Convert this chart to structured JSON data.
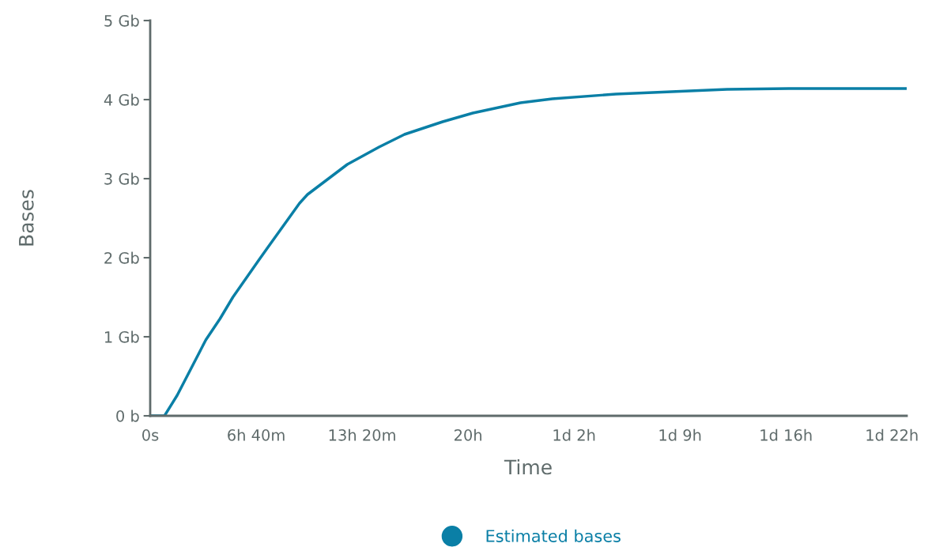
{
  "chart_data": {
    "type": "line",
    "xlabel": "Time",
    "ylabel": "Bases",
    "xlim": [
      0,
      47.6
    ],
    "ylim": [
      0,
      5
    ],
    "xticks": [
      {
        "value": 0,
        "label": "0s"
      },
      {
        "value": 6.667,
        "label": "6h 40m"
      },
      {
        "value": 13.333,
        "label": "13h 20m"
      },
      {
        "value": 20,
        "label": "20h"
      },
      {
        "value": 26.667,
        "label": "1d 2h"
      },
      {
        "value": 33.333,
        "label": "1d 9h"
      },
      {
        "value": 40,
        "label": "1d 16h"
      },
      {
        "value": 46.667,
        "label": "1d 22h"
      }
    ],
    "yticks": [
      {
        "value": 0,
        "label": "0 b"
      },
      {
        "value": 1,
        "label": "1 Gb"
      },
      {
        "value": 2,
        "label": "2 Gb"
      },
      {
        "value": 3,
        "label": "3 Gb"
      },
      {
        "value": 4,
        "label": "4 Gb"
      },
      {
        "value": 5,
        "label": "5 Gb"
      }
    ],
    "grid": false,
    "legend": "bottom",
    "marker": "none",
    "line_style": "solid",
    "series": [
      {
        "name": "Estimated bases",
        "color": "#0a7fa6",
        "x": [
          0,
          0.9,
          1.7,
          3.5,
          4.4,
          5.2,
          6.8,
          7.4,
          9.4,
          9.9,
          12.4,
          14.4,
          16.0,
          18.4,
          20.3,
          23.3,
          25.3,
          29.3,
          32.8,
          36.3,
          40.2,
          47.6
        ],
        "values": [
          0,
          0,
          0.26,
          0.96,
          1.23,
          1.5,
          1.96,
          2.13,
          2.69,
          2.8,
          3.18,
          3.4,
          3.56,
          3.72,
          3.83,
          3.96,
          4.01,
          4.07,
          4.1,
          4.13,
          4.14,
          4.14
        ]
      }
    ]
  }
}
